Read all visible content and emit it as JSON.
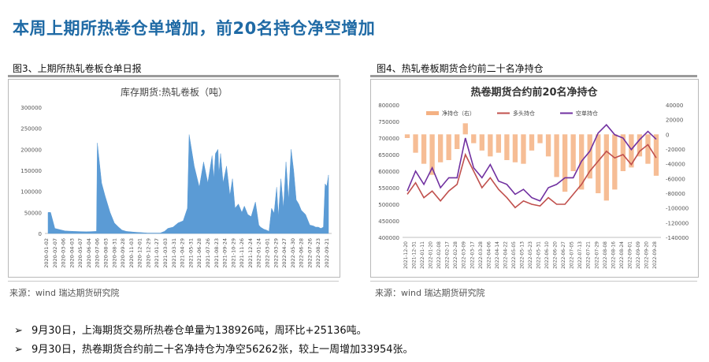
{
  "page": {
    "title": "本周上期所热卷仓单增加，前20名持仓净空增加",
    "source_text": "来源：wind   瑞达期货研究院",
    "bullets": [
      "9月30日，上海期货交易所热卷仓单量为138926吨，周环比+25136吨。",
      "9月30日，热卷期货合约前二十名净持仓为净空56262张，较上一周增加33954张。"
    ]
  },
  "chart_data": [
    {
      "type": "area",
      "caption": "图3、上期所热轧卷板仓单日报",
      "title": "库存期货:热轧卷板（吨）",
      "color": "#5b9bd5",
      "ylim": [
        0,
        300000
      ],
      "yticks": [
        0,
        50000,
        100000,
        150000,
        200000,
        250000,
        300000
      ],
      "xticks": [
        "2020-01-02",
        "2020-02-07",
        "2020-03-06",
        "2020-04-03",
        "2020-05-07",
        "2020-06-04",
        "2020-07-06",
        "2020-08-03",
        "2020-08-31",
        "2020-09-28",
        "2020-11-03",
        "2020-12-01",
        "2020-12-29",
        "2021-01-27",
        "2021-03-03",
        "2021-03-31",
        "2021-04-29",
        "2021-05-31",
        "2021-06-28",
        "2021-07-26",
        "2021-08-23",
        "2021-09-24",
        "2021-10-29",
        "2021-11-26",
        "2021-12-24",
        "2022-01-24",
        "2022-03-01",
        "2022-03-29",
        "2022-04-27",
        "2022-05-30",
        "2022-06-28",
        "2022-07-26",
        "2022-08-23",
        "2022-09-21"
      ],
      "x": [
        0,
        0.3,
        0.8,
        1.4,
        2.0,
        3.0,
        4.5,
        5.7,
        5.8,
        6.3,
        6.7,
        7.3,
        7.8,
        8.3,
        8.7,
        9.2,
        10.2,
        11.0,
        11.7,
        12.5,
        12.8,
        13.2,
        13.7,
        14.1,
        14.7,
        15.3,
        15.9,
        16.4,
        16.6,
        17.2,
        17.8,
        18.3,
        18.8,
        19.3,
        19.5,
        19.7,
        20.0,
        20.1,
        20.3,
        20.6,
        21.0,
        21.4,
        21.7,
        22.0,
        22.4,
        22.8,
        23.1,
        23.5,
        23.9,
        24.4,
        24.8,
        25.0,
        25.4,
        25.7,
        26.0,
        26.3,
        26.6,
        26.9,
        27.1,
        27.4,
        27.7,
        28.0,
        28.3,
        28.6,
        28.9,
        29.2,
        29.5,
        29.8,
        30.3,
        30.8,
        31.2,
        31.5,
        31.8,
        32.1,
        32.4,
        32.6,
        32.8,
        33.0
      ],
      "values": [
        50000,
        50000,
        12000,
        9000,
        6000,
        5000,
        4000,
        5000,
        215000,
        120000,
        90000,
        50000,
        25000,
        15000,
        8000,
        5000,
        3000,
        2000,
        1000,
        1000,
        1000,
        1000,
        5000,
        12000,
        15000,
        25000,
        30000,
        60000,
        235000,
        160000,
        110000,
        170000,
        120000,
        185000,
        130000,
        190000,
        200000,
        140000,
        190000,
        120000,
        160000,
        90000,
        130000,
        60000,
        70000,
        50000,
        65000,
        45000,
        40000,
        75000,
        20000,
        15000,
        10000,
        8000,
        5000,
        60000,
        48000,
        110000,
        40000,
        130000,
        60000,
        170000,
        80000,
        200000,
        150000,
        80000,
        70000,
        55000,
        45000,
        20000,
        18000,
        15000,
        15000,
        12000,
        15000,
        118000,
        112000,
        138926
      ]
    },
    {
      "type": "line",
      "caption": "图4、热轧卷板期货合约前二十名净持仓",
      "title": "热卷期货合约前20名净持仓",
      "ylim_left": [
        400000,
        800000
      ],
      "yticks_left": [
        400000,
        450000,
        500000,
        550000,
        600000,
        650000,
        700000,
        750000,
        800000
      ],
      "ylim_right": [
        -140000,
        40000
      ],
      "yticks_right": [
        -140000,
        -120000,
        -100000,
        -80000,
        -60000,
        -40000,
        -20000,
        0,
        20000,
        40000
      ],
      "xticks": [
        "2021-12-20",
        "2021-12-31",
        "2022-01-11",
        "2022-01-20",
        "2022-02-08",
        "2022-02-17",
        "2022-02-28",
        "2022-03-09",
        "2022-03-17",
        "2022-03-28",
        "2022-04-06",
        "2022-04-14",
        "2022-04-22",
        "2022-05-05",
        "2022-05-13",
        "2022-05-23",
        "2022-05-31",
        "2022-06-10",
        "2022-06-20",
        "2022-06-27",
        "2022-07-05",
        "2022-07-13",
        "2022-07-21",
        "2022-07-29",
        "2022-08-08",
        "2022-08-16",
        "2022-08-24",
        "2022-09-01",
        "2022-09-09",
        "2022-09-20",
        "2022-09-28"
      ],
      "x": [
        0,
        1,
        2,
        3,
        4,
        5,
        6,
        7,
        8,
        9,
        10,
        11,
        12,
        13,
        14,
        15,
        16,
        17,
        18,
        19,
        20,
        21,
        22,
        23,
        24,
        25,
        26,
        27,
        28,
        29,
        30
      ],
      "series": [
        {
          "name": "净持仓（右）",
          "kind": "bar",
          "axis": "right",
          "color": "#f4b183",
          "values": [
            -5000,
            -25000,
            -40000,
            -55000,
            -38000,
            -35000,
            -20000,
            15000,
            -12000,
            -22000,
            -30000,
            -25000,
            -35000,
            -38000,
            -40000,
            -22000,
            -12000,
            -30000,
            -58000,
            -78000,
            -50000,
            -75000,
            -60000,
            -80000,
            -90000,
            -75000,
            -50000,
            -45000,
            -30000,
            -40000,
            -56262
          ]
        },
        {
          "name": "多头持仓",
          "kind": "line",
          "axis": "left",
          "color": "#c0504d",
          "values": [
            530000,
            565000,
            520000,
            540000,
            510000,
            540000,
            560000,
            650000,
            600000,
            550000,
            580000,
            545000,
            520000,
            490000,
            510000,
            500000,
            495000,
            520000,
            500000,
            500000,
            530000,
            560000,
            600000,
            630000,
            660000,
            640000,
            650000,
            620000,
            660000,
            680000,
            640000
          ]
        },
        {
          "name": "空单持仓",
          "kind": "line",
          "axis": "left",
          "color": "#7030a0",
          "values": [
            540000,
            600000,
            560000,
            610000,
            550000,
            580000,
            580000,
            700000,
            610000,
            580000,
            620000,
            570000,
            560000,
            530000,
            545000,
            520000,
            510000,
            550000,
            560000,
            580000,
            580000,
            630000,
            660000,
            715000,
            740000,
            710000,
            700000,
            665000,
            695000,
            720000,
            696262
          ]
        }
      ]
    }
  ]
}
